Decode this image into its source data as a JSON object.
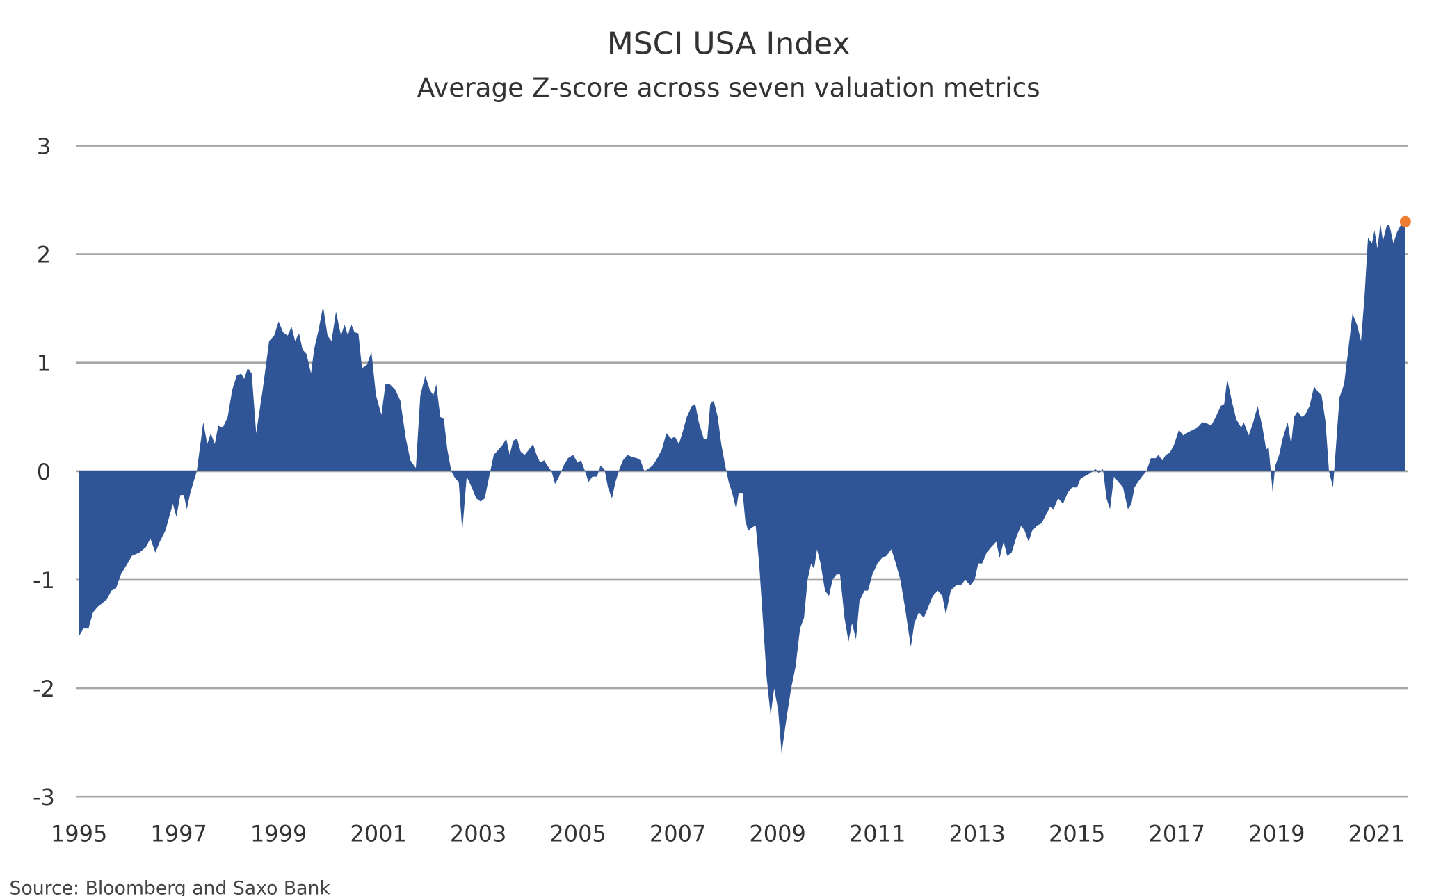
{
  "chart_data": {
    "type": "area",
    "title": "MSCI USA Index",
    "subtitle": "Average Z-score across seven valuation metrics",
    "xlabel": "",
    "ylabel": "",
    "source": "Source: Bloomberg and Saxo Bank",
    "xlim": [
      1995,
      2021.63
    ],
    "ylim": [
      -3,
      3
    ],
    "grid": true,
    "legend": "none",
    "x_ticks": [
      "1995",
      "1997",
      "1999",
      "2001",
      "2003",
      "2005",
      "2007",
      "2009",
      "2011",
      "2013",
      "2015",
      "2017",
      "2019",
      "2021"
    ],
    "y_ticks": [
      "3",
      "2",
      "1",
      "0",
      "-1",
      "-2",
      "-3"
    ],
    "fill_color": "#2f5597",
    "marker_color": "#ed7d31",
    "latest_point": {
      "x": 2021.58,
      "y": 2.3
    },
    "series": [
      {
        "name": "Average Z-score",
        "x": [
          1995.0,
          1995.09,
          1995.19,
          1995.28,
          1995.37,
          1995.46,
          1995.56,
          1995.65,
          1995.74,
          1995.84,
          1995.97,
          1996.06,
          1996.21,
          1996.34,
          1996.43,
          1996.53,
          1996.62,
          1996.73,
          1996.82,
          1996.88,
          1996.95,
          1997.03,
          1997.1,
          1997.16,
          1997.23,
          1997.36,
          1997.49,
          1997.57,
          1997.64,
          1997.72,
          1997.79,
          1997.88,
          1997.98,
          1998.07,
          1998.16,
          1998.25,
          1998.31,
          1998.38,
          1998.46,
          1998.55,
          1998.68,
          1998.81,
          1998.91,
          1999.0,
          1999.09,
          1999.18,
          1999.26,
          1999.33,
          1999.41,
          1999.48,
          1999.56,
          1999.65,
          1999.71,
          1999.8,
          1999.89,
          1999.98,
          2000.06,
          2000.15,
          2000.25,
          2000.32,
          2000.39,
          2000.45,
          2000.52,
          2000.6,
          2000.67,
          2000.77,
          2000.86,
          2000.95,
          2001.06,
          2001.14,
          2001.23,
          2001.34,
          2001.44,
          2001.55,
          2001.64,
          2001.75,
          2001.84,
          2001.94,
          2002.03,
          2002.1,
          2002.16,
          2002.24,
          2002.31,
          2002.38,
          2002.46,
          2002.53,
          2002.61,
          2002.68,
          2002.77,
          2002.87,
          2002.96,
          2003.05,
          2003.13,
          2003.22,
          2003.31,
          2003.41,
          2003.5,
          2003.56,
          2003.63,
          2003.7,
          2003.78,
          2003.85,
          2003.93,
          2004.02,
          2004.1,
          2004.17,
          2004.24,
          2004.32,
          2004.39,
          2004.47,
          2004.54,
          2004.62,
          2004.71,
          2004.8,
          2004.9,
          2004.99,
          2005.06,
          2005.14,
          2005.21,
          2005.29,
          2005.38,
          2005.45,
          2005.53,
          2005.6,
          2005.68,
          2005.75,
          2005.83,
          2005.9,
          2005.99,
          2006.09,
          2006.18,
          2006.25,
          2006.33,
          2006.4,
          2006.49,
          2006.59,
          2006.68,
          2006.77,
          2006.87,
          2006.94,
          2007.02,
          2007.09,
          2007.18,
          2007.28,
          2007.35,
          2007.42,
          2007.52,
          2007.59,
          2007.65,
          2007.72,
          2007.8,
          2007.87,
          2007.95,
          2008.02,
          2008.09,
          2008.17,
          2008.22,
          2008.3,
          2008.35,
          2008.41,
          2008.48,
          2008.56,
          2008.63,
          2008.71,
          2008.78,
          2008.86,
          2008.93,
          2009.01,
          2009.08,
          2009.17,
          2009.27,
          2009.36,
          2009.45,
          2009.53,
          2009.6,
          2009.67,
          2009.73,
          2009.79,
          2009.86,
          2009.95,
          2010.03,
          2010.1,
          2010.18,
          2010.25,
          2010.34,
          2010.42,
          2010.49,
          2010.57,
          2010.64,
          2010.74,
          2010.81,
          2010.9,
          2011.0,
          2011.09,
          2011.18,
          2011.28,
          2011.37,
          2011.46,
          2011.55,
          2011.67,
          2011.74,
          2011.83,
          2011.93,
          2012.02,
          2012.11,
          2012.21,
          2012.3,
          2012.37,
          2012.47,
          2012.58,
          2012.67,
          2012.76,
          2012.86,
          2012.95,
          2013.02,
          2013.1,
          2013.19,
          2013.28,
          2013.38,
          2013.45,
          2013.53,
          2013.6,
          2013.69,
          2013.79,
          2013.88,
          2013.95,
          2014.03,
          2014.1,
          2014.2,
          2014.29,
          2014.38,
          2014.46,
          2014.53,
          2014.62,
          2014.72,
          2014.81,
          2014.9,
          2015.0,
          2015.07,
          2015.14,
          2015.26,
          2015.37,
          2015.44,
          2015.52,
          2015.59,
          2015.66,
          2015.74,
          2015.83,
          2015.92,
          2016.02,
          2016.09,
          2016.15,
          2016.22,
          2016.3,
          2016.39,
          2016.48,
          2016.58,
          2016.63,
          2016.71,
          2016.78,
          2016.86,
          2016.95,
          2017.04,
          2017.13,
          2017.23,
          2017.32,
          2017.41,
          2017.51,
          2017.6,
          2017.69,
          2017.78,
          2017.88,
          2017.95,
          2018.01,
          2018.1,
          2018.19,
          2018.29,
          2018.34,
          2018.44,
          2018.53,
          2018.62,
          2018.71,
          2018.79,
          2018.84,
          2018.92,
          2018.97,
          2019.05,
          2019.12,
          2019.22,
          2019.29,
          2019.35,
          2019.42,
          2019.5,
          2019.57,
          2019.66,
          2019.75,
          2019.83,
          2019.9,
          2019.98,
          2020.05,
          2020.13,
          2020.2,
          2020.26,
          2020.35,
          2020.43,
          2020.52,
          2020.61,
          2020.69,
          2020.76,
          2020.83,
          2020.91,
          2020.96,
          2021.02,
          2021.08,
          2021.13,
          2021.21,
          2021.26,
          2021.34,
          2021.41,
          2021.5,
          2021.58
        ],
        "y": [
          -1.52,
          -1.45,
          -1.45,
          -1.3,
          -1.25,
          -1.22,
          -1.18,
          -1.1,
          -1.08,
          -0.95,
          -0.85,
          -0.78,
          -0.75,
          -0.7,
          -0.62,
          -0.75,
          -0.65,
          -0.55,
          -0.4,
          -0.3,
          -0.42,
          -0.22,
          -0.22,
          -0.35,
          -0.2,
          0.0,
          0.45,
          0.25,
          0.35,
          0.25,
          0.42,
          0.4,
          0.5,
          0.75,
          0.88,
          0.9,
          0.85,
          0.95,
          0.9,
          0.35,
          0.75,
          1.2,
          1.25,
          1.38,
          1.28,
          1.25,
          1.33,
          1.2,
          1.27,
          1.12,
          1.08,
          0.9,
          1.12,
          1.3,
          1.52,
          1.25,
          1.2,
          1.47,
          1.25,
          1.35,
          1.25,
          1.36,
          1.28,
          1.27,
          0.95,
          0.98,
          1.1,
          0.7,
          0.52,
          0.8,
          0.8,
          0.75,
          0.65,
          0.3,
          0.1,
          0.03,
          0.7,
          0.88,
          0.75,
          0.7,
          0.8,
          0.5,
          0.48,
          0.2,
          0.0,
          -0.06,
          -0.1,
          -0.55,
          -0.05,
          -0.15,
          -0.25,
          -0.28,
          -0.25,
          -0.05,
          0.15,
          0.2,
          0.25,
          0.3,
          0.15,
          0.28,
          0.3,
          0.18,
          0.15,
          0.2,
          0.25,
          0.15,
          0.08,
          0.1,
          0.05,
          0.0,
          -0.12,
          -0.05,
          0.05,
          0.12,
          0.15,
          0.08,
          0.1,
          0.0,
          -0.1,
          -0.05,
          -0.05,
          0.05,
          0.02,
          -0.15,
          -0.25,
          -0.1,
          0.02,
          0.1,
          0.15,
          0.13,
          0.12,
          0.1,
          0.0,
          0.02,
          0.05,
          0.12,
          0.2,
          0.35,
          0.3,
          0.32,
          0.25,
          0.35,
          0.5,
          0.6,
          0.62,
          0.45,
          0.3,
          0.3,
          0.62,
          0.65,
          0.5,
          0.25,
          0.05,
          -0.1,
          -0.2,
          -0.35,
          -0.2,
          -0.2,
          -0.45,
          -0.55,
          -0.52,
          -0.5,
          -0.85,
          -1.4,
          -1.9,
          -2.25,
          -2.0,
          -2.2,
          -2.6,
          -2.3,
          -2.0,
          -1.8,
          -1.45,
          -1.35,
          -1.0,
          -0.85,
          -0.9,
          -0.72,
          -0.85,
          -1.1,
          -1.15,
          -1.0,
          -0.95,
          -0.95,
          -1.35,
          -1.57,
          -1.4,
          -1.55,
          -1.2,
          -1.1,
          -1.1,
          -0.95,
          -0.85,
          -0.8,
          -0.78,
          -0.72,
          -0.85,
          -1.0,
          -1.25,
          -1.62,
          -1.4,
          -1.3,
          -1.35,
          -1.25,
          -1.15,
          -1.1,
          -1.15,
          -1.32,
          -1.1,
          -1.05,
          -1.05,
          -1.0,
          -1.05,
          -1.0,
          -0.85,
          -0.85,
          -0.75,
          -0.7,
          -0.65,
          -0.8,
          -0.65,
          -0.78,
          -0.75,
          -0.6,
          -0.5,
          -0.55,
          -0.65,
          -0.55,
          -0.5,
          -0.48,
          -0.4,
          -0.33,
          -0.35,
          -0.25,
          -0.3,
          -0.2,
          -0.15,
          -0.15,
          -0.07,
          -0.05,
          -0.02,
          0.02,
          -0.02,
          0.02,
          -0.25,
          -0.35,
          -0.05,
          -0.1,
          -0.15,
          -0.35,
          -0.3,
          -0.15,
          -0.1,
          -0.05,
          0.0,
          0.12,
          0.12,
          0.15,
          0.1,
          0.15,
          0.17,
          0.25,
          0.38,
          0.33,
          0.36,
          0.38,
          0.4,
          0.45,
          0.44,
          0.42,
          0.5,
          0.6,
          0.62,
          0.85,
          0.65,
          0.48,
          0.4,
          0.45,
          0.33,
          0.45,
          0.6,
          0.42,
          0.2,
          0.22,
          -0.2,
          0.05,
          0.15,
          0.3,
          0.45,
          0.25,
          0.5,
          0.55,
          0.5,
          0.52,
          0.6,
          0.78,
          0.73,
          0.7,
          0.45,
          0.0,
          -0.15,
          0.3,
          0.68,
          0.8,
          1.1,
          1.45,
          1.35,
          1.2,
          1.6,
          2.15,
          2.1,
          2.22,
          2.05,
          2.28,
          2.12,
          2.27,
          2.27,
          2.1,
          2.2,
          2.28,
          2.3
        ]
      }
    ]
  }
}
